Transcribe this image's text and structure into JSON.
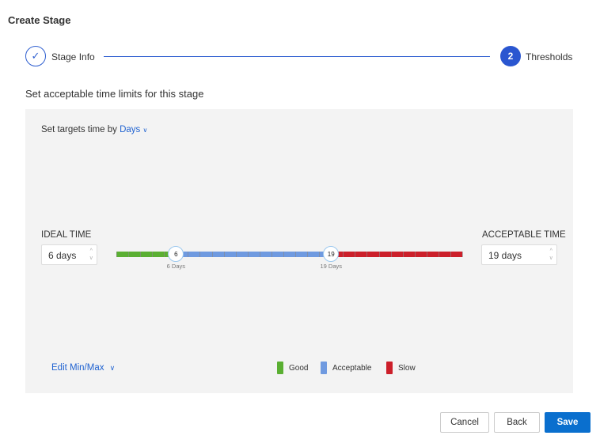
{
  "title": "Create Stage",
  "steps": [
    {
      "label": "Stage Info",
      "state": "done",
      "icon": "check-icon"
    },
    {
      "number": "2",
      "label": "Thresholds",
      "state": "active"
    }
  ],
  "subtitle": "Set acceptable time limits for this stage",
  "target": {
    "prefix": "Set targets time by",
    "unit": "Days"
  },
  "ideal": {
    "label": "IDEAL TIME",
    "value": "6 days"
  },
  "acceptable": {
    "label": "ACCEPTABLE TIME",
    "value": "19 days"
  },
  "slider": {
    "min": 1,
    "max": 30,
    "ideal": 6,
    "acceptable": 19,
    "ideal_handle": "6",
    "acceptable_handle": "19",
    "ideal_caption": "6 Days",
    "acceptable_caption": "19 Days"
  },
  "edit_minmax": "Edit Min/Max",
  "legend": [
    {
      "label": "Good",
      "color": "#5aaf32"
    },
    {
      "label": "Acceptable",
      "color": "#6f9ae0"
    },
    {
      "label": "Slow",
      "color": "#cc1f2a"
    }
  ],
  "buttons": {
    "cancel": "Cancel",
    "back": "Back",
    "save": "Save"
  },
  "colors": {
    "accent": "#2a56d0",
    "save": "#0a6fce"
  }
}
